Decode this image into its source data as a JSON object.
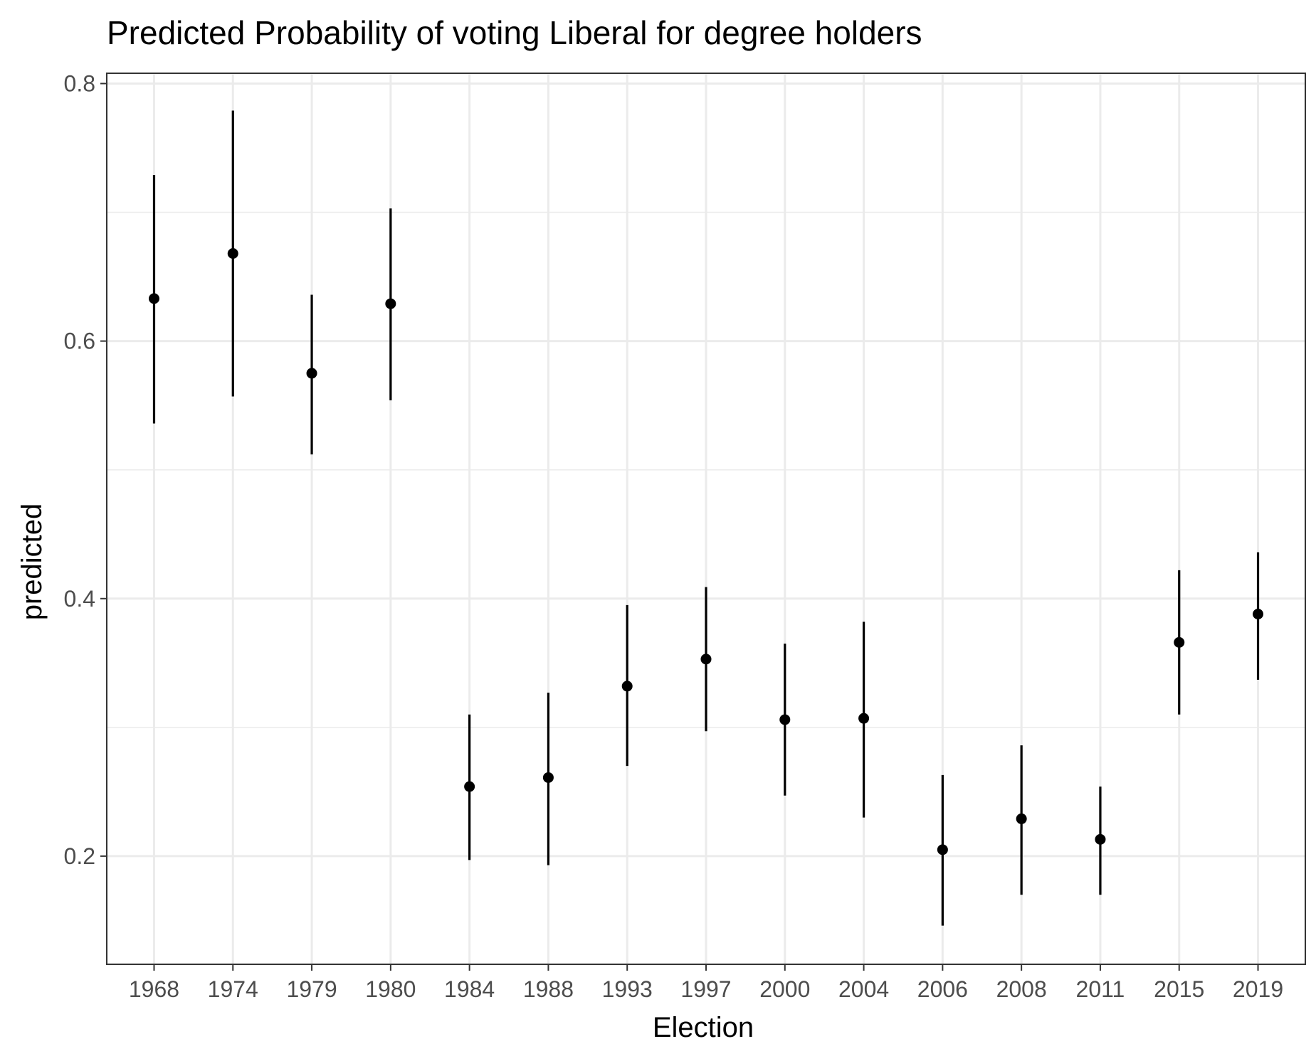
{
  "chart_data": {
    "type": "scatter",
    "title": "Predicted Probability of voting Liberal for degree holders",
    "xlabel": "Election",
    "ylabel": "predicted",
    "ylim": [
      0.116,
      0.808
    ],
    "y_ticks": [
      0.2,
      0.4,
      0.6,
      0.8
    ],
    "y_tick_labels": [
      "0.2",
      "0.4",
      "0.6",
      "0.8"
    ],
    "grid": true,
    "categories": [
      "1968",
      "1974",
      "1979",
      "1980",
      "1984",
      "1988",
      "1993",
      "1997",
      "2000",
      "2004",
      "2006",
      "2008",
      "2011",
      "2015",
      "2019"
    ],
    "series": [
      {
        "values": [
          0.633,
          0.668,
          0.575,
          0.629,
          0.254,
          0.261,
          0.332,
          0.353,
          0.306,
          0.307,
          0.205,
          0.229,
          0.213,
          0.366,
          0.388
        ],
        "lower": [
          0.536,
          0.557,
          0.512,
          0.554,
          0.197,
          0.193,
          0.27,
          0.297,
          0.247,
          0.23,
          0.146,
          0.17,
          0.17,
          0.31,
          0.337
        ],
        "upper": [
          0.729,
          0.779,
          0.636,
          0.703,
          0.31,
          0.327,
          0.395,
          0.409,
          0.365,
          0.382,
          0.263,
          0.286,
          0.254,
          0.422,
          0.436
        ]
      }
    ],
    "colors": {
      "points": "#000000",
      "grid": "#ebebeb",
      "panel_border": "#333333",
      "tick_labels": "#4d4d4d"
    }
  }
}
